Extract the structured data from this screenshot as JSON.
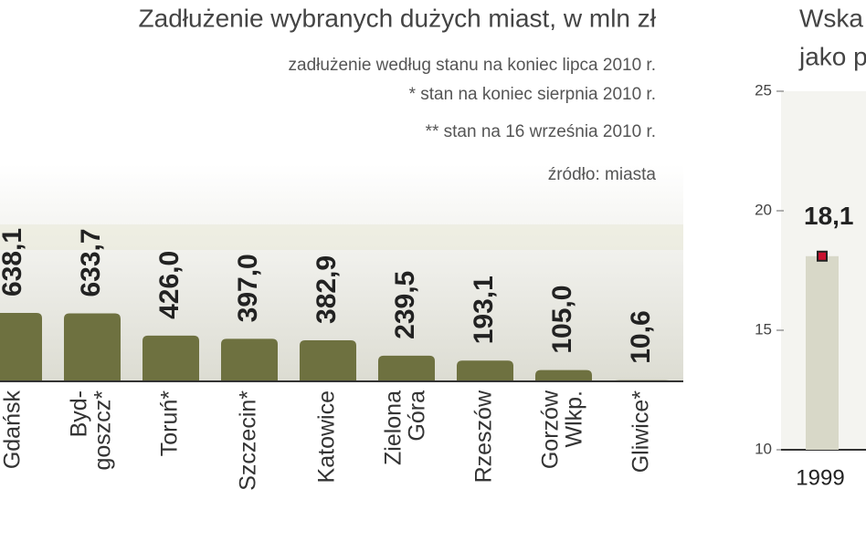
{
  "chart_data": [
    {
      "type": "bar",
      "title": "Zadłużenie wybranych dużych miast, w mln zł",
      "notes": [
        "zadłużenie według stanu na koniec lipca 2010 r.",
        "* stan na koniec sierpnia 2010 r.",
        "** stan na 16 września 2010 r."
      ],
      "source": "źródło: miasta",
      "categories": [
        [
          "Gdańsk"
        ],
        [
          "Byd-",
          "goszcz*"
        ],
        [
          "Toruń*"
        ],
        [
          "Szczecin*"
        ],
        [
          "Katowice"
        ],
        [
          "Zielona",
          "Góra"
        ],
        [
          "Rzeszów"
        ],
        [
          "Gorzów",
          "Wlkp."
        ],
        [
          "Gliwice*"
        ]
      ],
      "values": [
        638.1,
        633.7,
        426.0,
        397.0,
        382.9,
        239.5,
        193.1,
        105.0,
        10.6
      ],
      "value_labels": [
        "638,1",
        "633,7",
        "426,0",
        "397,0",
        "382,9",
        "239,5",
        "193,1",
        "105,0",
        "10,6"
      ],
      "color": "#6e7140"
    },
    {
      "type": "line",
      "title": [
        "Wska",
        "jako p"
      ],
      "x": [
        "1999"
      ],
      "series": [
        {
          "color": "#c8102e",
          "values": [
            18.1
          ],
          "value_labels": [
            "18,1"
          ]
        }
      ],
      "ylim": [
        10,
        25
      ],
      "yticks": [
        10,
        15,
        20,
        25
      ]
    }
  ]
}
